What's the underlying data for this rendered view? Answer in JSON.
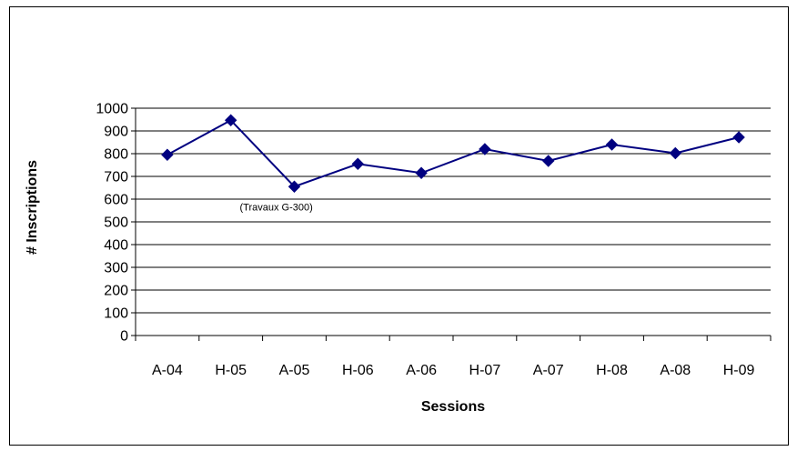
{
  "chart_data": {
    "type": "line",
    "title": "",
    "xlabel": "Sessions",
    "ylabel": "# Inscriptions",
    "categories": [
      "A-04",
      "H-05",
      "A-05",
      "H-06",
      "A-06",
      "H-07",
      "A-07",
      "H-08",
      "A-08",
      "H-09"
    ],
    "series": [
      {
        "values": [
          795,
          947,
          655,
          755,
          715,
          820,
          768,
          840,
          802,
          872
        ],
        "color": "#000080"
      }
    ],
    "ylim": [
      0,
      1000
    ],
    "ytick_step": 100,
    "yticks": [
      "0",
      "100",
      "200",
      "300",
      "400",
      "500",
      "600",
      "700",
      "800",
      "900",
      "1000"
    ],
    "grid": "horizontal",
    "legend": "none",
    "marker": "diamond",
    "annotations": [
      {
        "text": "(Travaux G-300)",
        "category": "A-05"
      }
    ]
  }
}
